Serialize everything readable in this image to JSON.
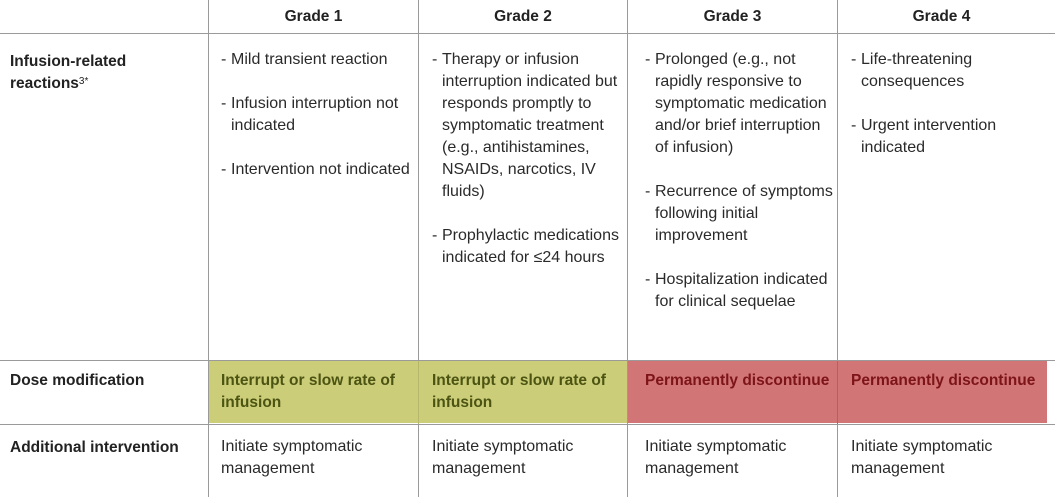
{
  "headers": [
    "Grade 1",
    "Grade 2",
    "Grade 3",
    "Grade 4"
  ],
  "rows": {
    "infusion": {
      "label": "Infusion-related reactions",
      "label_line1": "Infusion-related",
      "label_line2": "reactions",
      "label_sup": "3*",
      "grades": [
        [
          "Mild transient reaction",
          "Infusion interruption not indicated",
          "Intervention not indicated"
        ],
        [
          "Therapy or infusion interruption indicated but responds promptly to symptomatic treatment (e.g., antihistamines, NSAIDs, narcotics, IV fluids)",
          "Prophylactic medications indicated for ≤24 hours"
        ],
        [
          "Prolonged (e.g., not rapidly responsive to symptomatic medication and/or brief interruption of infusion)",
          "Recurrence of symptoms following initial improvement",
          "Hospitalization indicated for clinical sequelae"
        ],
        [
          "Life-threatening consequences",
          "Urgent intervention indicated"
        ]
      ]
    },
    "dose": {
      "label": "Dose modification",
      "grades": [
        "Interrupt or slow rate of infusion",
        "Interrupt or slow rate of infusion",
        "Permanently discontinue",
        "Permanently discontinue"
      ]
    },
    "additional": {
      "label": "Additional intervention",
      "grades": [
        "Initiate symptomatic management",
        "Initiate symptomatic management",
        "Initiate symptomatic management",
        "Initiate symptomatic management"
      ]
    }
  },
  "colors": {
    "grade_1_2_fill": "#cccd79",
    "grade_3_4_fill": "#d27577",
    "grade_1_2_text": "#4b5412",
    "grade_3_4_text": "#7c1418",
    "rule": "#9a9a9a"
  }
}
